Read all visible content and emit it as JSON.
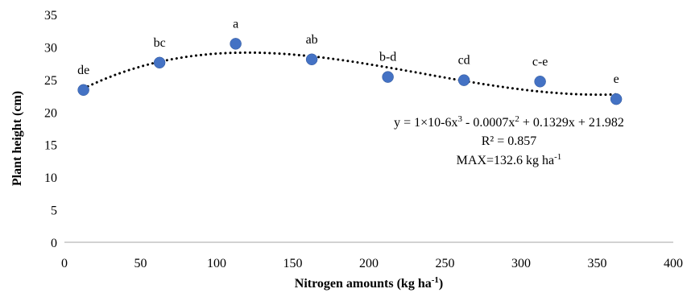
{
  "chart_data": {
    "type": "scatter",
    "title": "",
    "xlabel": "Nitrogen amounts (kg ha",
    "xlabel_sup": "-1",
    "xlabel_end": ")",
    "ylabel": "Plant height (cm)",
    "xlim": [
      0,
      400
    ],
    "ylim": [
      0,
      35
    ],
    "x_ticks": [
      0,
      50,
      100,
      150,
      200,
      250,
      300,
      350,
      400
    ],
    "y_ticks": [
      0,
      5,
      10,
      15,
      20,
      25,
      30,
      35
    ],
    "grid": false,
    "x": [
      12.5,
      62.5,
      112.5,
      162.5,
      212.5,
      262.5,
      312.5,
      362.5
    ],
    "y": [
      23.4,
      27.6,
      30.5,
      28.1,
      25.4,
      24.9,
      24.7,
      22.0
    ],
    "point_labels": [
      "de",
      "bc",
      "a",
      "ab",
      "b-d",
      "cd",
      "c-e",
      "e"
    ],
    "trendline": {
      "type": "polynomial",
      "order": 3,
      "x_range": [
        12.5,
        362.5
      ],
      "equation_parts": [
        "y = 1×10-6x",
        "3",
        " - 0.0007x",
        "2",
        " + 0.1329x + 21.982"
      ],
      "r2_text": "R² = 0.857",
      "max_text": "MAX=132.6 kg ha",
      "max_text_sup": "-1"
    },
    "colors": {
      "point": "#4472c4",
      "point_edge": "#2f5597",
      "trendline": "#000000",
      "axis": "#a6a6a6"
    }
  }
}
